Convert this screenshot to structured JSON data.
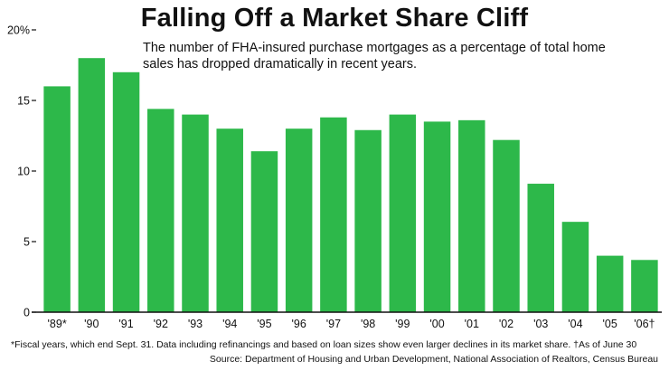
{
  "chart_data": {
    "type": "bar",
    "title": "Falling Off a Market Share Cliff",
    "subtitle": "The number of FHA-insured purchase mortgages as a percentage of total home sales has dropped dramatically in recent years.",
    "categories": [
      "'89*",
      "'90",
      "'91",
      "'92",
      "'93",
      "'94",
      "'95",
      "'96",
      "'97",
      "'98",
      "'99",
      "'00",
      "'01",
      "'02",
      "'03",
      "'04",
      "'05",
      "'06†"
    ],
    "values": [
      16.0,
      18.0,
      17.0,
      14.4,
      14.0,
      13.0,
      11.4,
      13.0,
      13.8,
      12.9,
      14.0,
      13.5,
      13.6,
      12.2,
      9.1,
      6.4,
      4.0,
      3.7
    ],
    "yticks": [
      "0",
      "5",
      "10",
      "15",
      "20%"
    ],
    "ytick_values": [
      0,
      5,
      10,
      15,
      20
    ],
    "ylim": [
      0,
      20
    ],
    "xlabel": "",
    "ylabel": "",
    "grid": false,
    "bar_color": "#2db84a",
    "footnote": "*Fiscal years, which end Sept. 31. Data including refinancings and based on loan sizes show even larger declines in its market share. †As of June 30",
    "source": "Source: Department of Housing and Urban Development, National Association of Realtors, Census Bureau"
  }
}
